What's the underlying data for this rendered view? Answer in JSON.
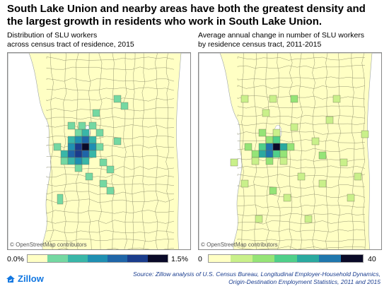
{
  "headline": "South Lake Union and nearby areas have both the greatest density and the largest growth in residents who work in South Lake Union.",
  "panels": [
    {
      "subtitle_line1": "Distribution of SLU workers",
      "subtitle_line2": "across census tract of residence, 2015",
      "attribution": "© OpenStreetMap contributors",
      "legend_min": "0.0%",
      "legend_max": "1.5%",
      "legend_colors": [
        "#ffffc4",
        "#74d8a2",
        "#39b6a8",
        "#1f8fb2",
        "#1f65a8",
        "#1a3c8c",
        "#0a0a28"
      ],
      "base_color": "#ffffc4",
      "water_color": "#ffffff"
    },
    {
      "subtitle_line1": "Average annual change in number of SLU workers",
      "subtitle_line2": "by residence census tract, 2011-2015",
      "attribution": "© OpenStreetMap contributors",
      "legend_min": "0",
      "legend_max": "40",
      "legend_colors": [
        "#ffffc4",
        "#c9f08a",
        "#95e477",
        "#4fcf8a",
        "#2aa9a0",
        "#1f76ad",
        "#0a0a28"
      ],
      "base_color": "#ffffc4",
      "water_color": "#ffffff"
    }
  ],
  "brand": "Zillow",
  "source_line1": "Source: Zillow analysis of U.S. Census Bureau, Longitudinal Employer-Household Dynamics,",
  "source_line2": "Origin-Destination Employment Statistics, 2011 and 2015"
}
